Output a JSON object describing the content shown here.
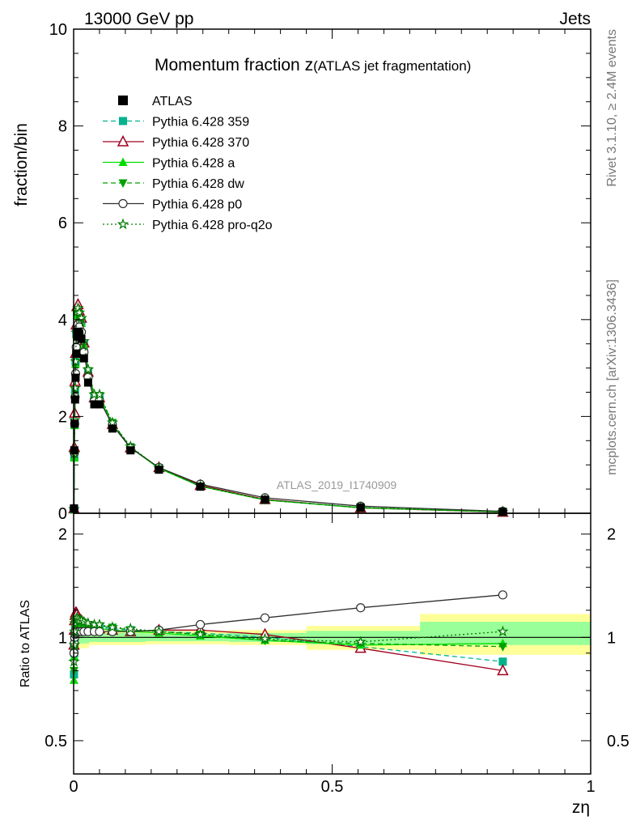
{
  "header": {
    "left": "13000 GeV pp",
    "right": "Jets"
  },
  "side_text": {
    "rivet": "Rivet 3.1.10, ≥ 2.4M events",
    "mcplots": "mcplots.cern.ch [arXiv:1306.3436]"
  },
  "chart_data": {
    "type": "line",
    "title": "Momentum fraction z",
    "title_sub": "(ATLAS jet fragmentation)",
    "analysis": "ATLAS_2019_I1740909",
    "ylabel": "fraction/bin",
    "ratio_ylabel": "Ratio to ATLAS",
    "xlabel": "zη",
    "xlim": [
      0,
      1
    ],
    "ylim": [
      0,
      10
    ],
    "ratio_ylim": [
      0.4,
      2.3
    ],
    "x_ticks": [
      "0",
      "0.5",
      "1"
    ],
    "y_ticks": [
      "0",
      "2",
      "4",
      "6",
      "8",
      "10"
    ],
    "ratio_ticks": [
      "0.5",
      "1",
      "2"
    ],
    "legend_position": "top-left",
    "x": [
      0.0007,
      0.0013,
      0.002,
      0.0028,
      0.0038,
      0.005,
      0.0065,
      0.0085,
      0.011,
      0.015,
      0.02,
      0.028,
      0.04,
      0.05,
      0.075,
      0.11,
      0.165,
      0.245,
      0.37,
      0.555,
      0.83
    ],
    "atlas": {
      "name": "ATLAS",
      "values": [
        0.1,
        1.3,
        1.85,
        2.35,
        2.8,
        3.3,
        3.65,
        3.75,
        3.7,
        3.6,
        3.2,
        2.7,
        2.25,
        2.25,
        1.75,
        1.3,
        0.9,
        0.55,
        0.28,
        0.12,
        0.03
      ]
    },
    "series": [
      {
        "name": "Pythia 6.428 359",
        "color": "#00b38c",
        "dash": "6,4",
        "marker": "square-filled",
        "ratio": [
          0.78,
          0.9,
          1.0,
          1.08,
          1.12,
          1.13,
          1.14,
          1.12,
          1.11,
          1.1,
          1.09,
          1.08,
          1.07,
          1.07,
          1.06,
          1.05,
          1.04,
          1.03,
          1.0,
          0.94,
          0.85
        ]
      },
      {
        "name": "Pythia 6.428 370",
        "color": "#a00020",
        "dash": "",
        "marker": "triangle-open",
        "ratio": [
          0.95,
          1.05,
          1.12,
          1.16,
          1.18,
          1.18,
          1.17,
          1.15,
          1.13,
          1.12,
          1.1,
          1.08,
          1.06,
          1.06,
          1.05,
          1.04,
          1.05,
          1.05,
          1.02,
          0.93,
          0.8
        ]
      },
      {
        "name": "Pythia 6.428 a",
        "color": "#00dd00",
        "dash": "",
        "marker": "triangle-filled",
        "ratio": [
          0.75,
          0.88,
          0.98,
          1.06,
          1.1,
          1.12,
          1.12,
          1.11,
          1.1,
          1.09,
          1.08,
          1.07,
          1.06,
          1.06,
          1.05,
          1.04,
          1.03,
          1.01,
          0.98,
          0.95,
          0.96
        ]
      },
      {
        "name": "Pythia 6.428 dw",
        "color": "#00a000",
        "dash": "6,4",
        "marker": "triangle-down-filled",
        "ratio": [
          0.8,
          0.92,
          1.02,
          1.08,
          1.11,
          1.13,
          1.13,
          1.12,
          1.11,
          1.1,
          1.1,
          1.09,
          1.08,
          1.08,
          1.07,
          1.05,
          1.04,
          1.02,
          0.98,
          0.96,
          0.94
        ]
      },
      {
        "name": "Pythia 6.428 p0",
        "color": "#303030",
        "dash": "",
        "marker": "circle-open",
        "ratio": [
          0.9,
          0.96,
          1.0,
          1.02,
          1.03,
          1.04,
          1.04,
          1.04,
          1.04,
          1.04,
          1.04,
          1.04,
          1.04,
          1.04,
          1.04,
          1.04,
          1.05,
          1.09,
          1.14,
          1.22,
          1.33
        ]
      },
      {
        "name": "Pythia 6.428 pro-q2o",
        "color": "#007a00",
        "dash": "2,3",
        "marker": "star-open",
        "ratio": [
          0.85,
          0.95,
          1.04,
          1.1,
          1.12,
          1.13,
          1.14,
          1.13,
          1.12,
          1.12,
          1.11,
          1.1,
          1.09,
          1.09,
          1.07,
          1.06,
          1.04,
          1.02,
          0.99,
          0.97,
          1.04
        ]
      }
    ],
    "ratio_bands": [
      {
        "x0": 0,
        "x1": 0.03,
        "inner": [
          0.96,
          1.04
        ],
        "outer": [
          0.93,
          1.07
        ]
      },
      {
        "x0": 0.03,
        "x1": 0.14,
        "inner": [
          0.97,
          1.03
        ],
        "outer": [
          0.95,
          1.05
        ]
      },
      {
        "x0": 0.14,
        "x1": 0.3,
        "inner": [
          0.975,
          1.025
        ],
        "outer": [
          0.955,
          1.045
        ]
      },
      {
        "x0": 0.3,
        "x1": 0.45,
        "inner": [
          0.97,
          1.03
        ],
        "outer": [
          0.95,
          1.05
        ]
      },
      {
        "x0": 0.45,
        "x1": 0.67,
        "inner": [
          0.955,
          1.045
        ],
        "outer": [
          0.92,
          1.08
        ]
      },
      {
        "x0": 0.67,
        "x1": 1.0,
        "inner": [
          0.95,
          1.11
        ],
        "outer": [
          0.89,
          1.17
        ]
      }
    ]
  }
}
